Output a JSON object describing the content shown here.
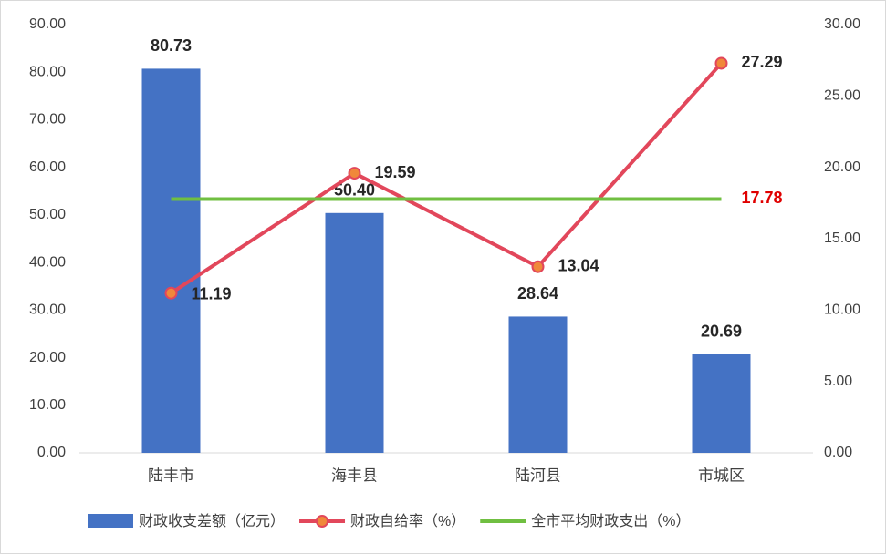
{
  "chart_data": {
    "type": "bar-line",
    "categories": [
      "陆丰市",
      "海丰县",
      "陆河县",
      "市城区"
    ],
    "series": [
      {
        "name": "财政收支差额（亿元）",
        "type": "bar",
        "color": "#4472c4",
        "values": [
          80.73,
          50.4,
          28.64,
          20.69
        ],
        "value_labels": [
          "80.73",
          "50.40",
          "28.64",
          "20.69"
        ]
      },
      {
        "name": "财政自给率（%）",
        "type": "line",
        "axis": "y2",
        "color": "#e2475b",
        "marker_color": "#f0883a",
        "values": [
          11.19,
          19.59,
          13.04,
          27.29
        ]
      },
      {
        "name": "全市平均财政支出（%）",
        "type": "line",
        "axis": "y2",
        "color": "#70bf41",
        "label_color": "#e00000",
        "values": [
          17.78,
          17.78,
          17.78,
          17.78
        ]
      }
    ],
    "ylim": [
      0,
      90
    ],
    "yticks": [
      {
        "value": 0,
        "label": "0.00"
      },
      {
        "value": 10,
        "label": "10.00"
      },
      {
        "value": 20,
        "label": "20.00"
      },
      {
        "value": 30,
        "label": "30.00"
      },
      {
        "value": 40,
        "label": "40.00"
      },
      {
        "value": 50,
        "label": "50.00"
      },
      {
        "value": 60,
        "label": "60.00"
      },
      {
        "value": 70,
        "label": "70.00"
      },
      {
        "value": 80,
        "label": "80.00"
      },
      {
        "value": 90,
        "label": "90.00"
      }
    ],
    "y2lim": [
      0,
      30
    ],
    "y2ticks": [
      {
        "value": 0,
        "label": "0.00"
      },
      {
        "value": 5,
        "label": "5.00"
      },
      {
        "value": 10,
        "label": "10.00"
      },
      {
        "value": 15,
        "label": "15.00"
      },
      {
        "value": 20,
        "label": "20.00"
      },
      {
        "value": 25,
        "label": "25.00"
      },
      {
        "value": 30,
        "label": "30.00"
      }
    ],
    "grid": false
  }
}
